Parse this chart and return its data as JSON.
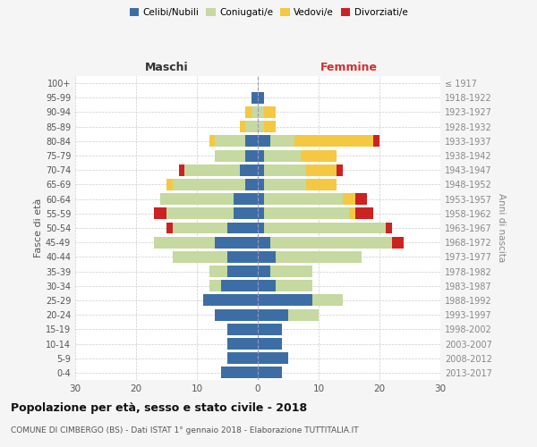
{
  "age_groups": [
    "0-4",
    "5-9",
    "10-14",
    "15-19",
    "20-24",
    "25-29",
    "30-34",
    "35-39",
    "40-44",
    "45-49",
    "50-54",
    "55-59",
    "60-64",
    "65-69",
    "70-74",
    "75-79",
    "80-84",
    "85-89",
    "90-94",
    "95-99",
    "100+"
  ],
  "birth_years": [
    "2013-2017",
    "2008-2012",
    "2003-2007",
    "1998-2002",
    "1993-1997",
    "1988-1992",
    "1983-1987",
    "1978-1982",
    "1973-1977",
    "1968-1972",
    "1963-1967",
    "1958-1962",
    "1953-1957",
    "1948-1952",
    "1943-1947",
    "1938-1942",
    "1933-1937",
    "1928-1932",
    "1923-1927",
    "1918-1922",
    "≤ 1917"
  ],
  "males": {
    "celibi": [
      6,
      5,
      5,
      5,
      7,
      9,
      6,
      5,
      5,
      7,
      5,
      4,
      4,
      2,
      3,
      2,
      2,
      0,
      0,
      1,
      0
    ],
    "coniugati": [
      0,
      0,
      0,
      0,
      0,
      0,
      2,
      3,
      9,
      10,
      9,
      11,
      12,
      12,
      9,
      5,
      5,
      2,
      1,
      0,
      0
    ],
    "vedovi": [
      0,
      0,
      0,
      0,
      0,
      0,
      0,
      0,
      0,
      0,
      0,
      0,
      0,
      1,
      0,
      0,
      1,
      1,
      1,
      0,
      0
    ],
    "divorziati": [
      0,
      0,
      0,
      0,
      0,
      0,
      0,
      0,
      0,
      0,
      1,
      2,
      0,
      0,
      1,
      0,
      0,
      0,
      0,
      0,
      0
    ]
  },
  "females": {
    "nubili": [
      4,
      5,
      4,
      4,
      5,
      9,
      3,
      2,
      3,
      2,
      1,
      1,
      1,
      1,
      1,
      1,
      2,
      0,
      0,
      1,
      0
    ],
    "coniugate": [
      0,
      0,
      0,
      0,
      5,
      5,
      6,
      7,
      14,
      20,
      20,
      14,
      13,
      7,
      7,
      6,
      4,
      1,
      1,
      0,
      0
    ],
    "vedove": [
      0,
      0,
      0,
      0,
      0,
      0,
      0,
      0,
      0,
      0,
      0,
      1,
      2,
      5,
      5,
      6,
      13,
      2,
      2,
      0,
      0
    ],
    "divorziate": [
      0,
      0,
      0,
      0,
      0,
      0,
      0,
      0,
      0,
      2,
      1,
      3,
      2,
      0,
      1,
      0,
      1,
      0,
      0,
      0,
      0
    ]
  },
  "colors": {
    "celibi": "#3c6ea5",
    "coniugati": "#c5d9a0",
    "vedovi": "#f5c842",
    "divorziati": "#cc2222"
  },
  "xlim": 30,
  "title": "Popolazione per età, sesso e stato civile - 2018",
  "subtitle": "COMUNE DI CIMBERGO (BS) - Dati ISTAT 1° gennaio 2018 - Elaborazione TUTTITALIA.IT",
  "ylabel": "Fasce di età",
  "right_ylabel": "Anni di nascita",
  "xlabel_left": "Maschi",
  "xlabel_right": "Femmine",
  "bg_color": "#f5f5f5",
  "plot_bg_color": "#ffffff"
}
